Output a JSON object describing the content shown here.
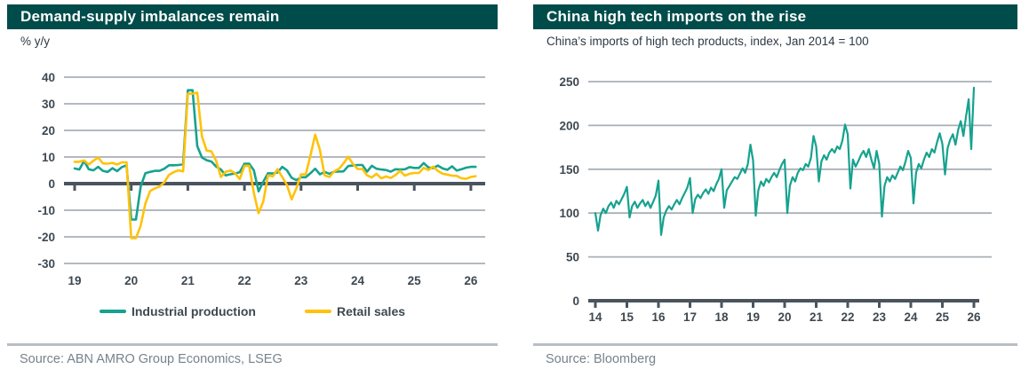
{
  "colors": {
    "header_bg": "#004C4A",
    "teal": "#16A28F",
    "yellow": "#FFC20A",
    "grid": "#A9AFB5",
    "axis": "#4A545E",
    "text_dark": "#2E3943",
    "text_muted": "#78828B",
    "divider": "#B9BEC3"
  },
  "left_panel": {
    "title": "Demand-supply imbalances remain",
    "subtitle": "% y/y",
    "source": "Source: ABN AMRO Group Economics, LSEG"
  },
  "right_panel": {
    "title": "China high tech imports on the rise",
    "subtitle": "China’s imports of high tech products, index, Jan 2014 = 100",
    "source": "Source: Bloomberg"
  },
  "chart_data": [
    {
      "type": "line",
      "title": "Demand-supply imbalances remain",
      "ylabel": "% y/y",
      "ylim": [
        -30,
        40
      ],
      "ytick_step": 10,
      "grid": true,
      "legend_position": "bottom",
      "x_unit": "monthly, Jan 2019 - Feb 2026",
      "x_ticks": [
        "19",
        "20",
        "21",
        "22",
        "23",
        "24",
        "25",
        "26"
      ],
      "series": [
        {
          "name": "Industrial production",
          "color": "#16A28F",
          "values": [
            5.7,
            5.3,
            8.5,
            5.4,
            5.0,
            6.3,
            4.8,
            4.4,
            5.8,
            4.7,
            6.2,
            6.9,
            -13.5,
            -13.5,
            -1.1,
            3.9,
            4.4,
            4.8,
            4.8,
            5.6,
            6.9,
            6.9,
            7.0,
            7.3,
            35.1,
            35.1,
            14.1,
            9.8,
            8.8,
            8.3,
            6.4,
            5.3,
            3.1,
            3.5,
            3.8,
            4.3,
            7.5,
            7.5,
            5.0,
            -2.9,
            0.7,
            3.9,
            3.8,
            4.2,
            6.3,
            5.0,
            2.2,
            1.3,
            2.4,
            2.4,
            3.9,
            5.6,
            3.5,
            4.4,
            3.7,
            4.5,
            4.5,
            4.6,
            6.6,
            6.8,
            7.0,
            7.0,
            4.5,
            6.7,
            5.6,
            5.3,
            5.1,
            4.5,
            5.4,
            5.3,
            5.4,
            6.2,
            5.9,
            5.9,
            7.7,
            6.1,
            5.8,
            6.8,
            5.7,
            5.2,
            6.5,
            4.9,
            5.4,
            6.0,
            6.3,
            6.3
          ]
        },
        {
          "name": "Retail sales",
          "color": "#FFC20A",
          "values": [
            8.2,
            8.2,
            8.7,
            7.2,
            8.6,
            9.8,
            7.6,
            7.5,
            7.8,
            7.2,
            8.0,
            8.0,
            -20.5,
            -20.5,
            -15.8,
            -7.5,
            -2.8,
            -1.8,
            -1.1,
            0.5,
            3.3,
            4.3,
            5.0,
            4.6,
            33.8,
            33.8,
            34.2,
            17.7,
            12.4,
            12.1,
            8.5,
            2.5,
            4.4,
            4.9,
            3.9,
            1.7,
            6.7,
            6.7,
            -3.5,
            -11.1,
            -6.7,
            3.1,
            2.7,
            5.4,
            2.5,
            -0.5,
            -5.9,
            -1.8,
            3.5,
            3.5,
            10.6,
            18.4,
            12.7,
            3.1,
            2.5,
            4.6,
            5.5,
            7.6,
            10.1,
            7.4,
            5.5,
            5.5,
            3.1,
            2.3,
            3.7,
            2.0,
            2.7,
            2.1,
            3.2,
            4.8,
            3.0,
            3.7,
            4.0,
            4.0,
            5.9,
            5.1,
            6.4,
            4.8,
            3.7,
            3.4,
            3.0,
            2.9,
            2.0,
            1.8,
            2.5,
            2.8
          ]
        }
      ]
    },
    {
      "type": "line",
      "title": "China high tech imports on the rise",
      "subtitle": "China’s imports of high tech products, index, Jan 2014 = 100",
      "ylim": [
        0,
        250
      ],
      "ytick_step": 50,
      "grid": true,
      "legend_position": "none",
      "x_unit": "monthly, Jan 2014 - Jan 2026",
      "x_ticks": [
        "14",
        "15",
        "16",
        "17",
        "18",
        "19",
        "20",
        "21",
        "22",
        "23",
        "24",
        "25",
        "26"
      ],
      "series": [
        {
          "name": "China imports of high tech products (index)",
          "color": "#16A28F",
          "values": [
            100,
            80,
            98,
            105,
            100,
            108,
            112,
            106,
            114,
            110,
            116,
            122,
            130,
            95,
            108,
            113,
            106,
            111,
            115,
            108,
            113,
            106,
            113,
            120,
            137,
            75,
            95,
            103,
            108,
            104,
            110,
            115,
            110,
            117,
            123,
            129,
            140,
            100,
            116,
            121,
            117,
            123,
            127,
            122,
            129,
            125,
            133,
            139,
            150,
            106,
            126,
            131,
            136,
            141,
            139,
            145,
            151,
            146,
            156,
            178,
            160,
            97,
            126,
            136,
            131,
            139,
            135,
            141,
            146,
            141,
            149,
            156,
            161,
            100,
            131,
            141,
            136,
            146,
            151,
            149,
            156,
            153,
            163,
            188,
            176,
            136,
            159,
            166,
            161,
            169,
            173,
            169,
            176,
            173,
            183,
            201,
            190,
            128,
            161,
            153,
            159,
            166,
            171,
            164,
            173,
            161,
            151,
            171,
            156,
            96,
            131,
            141,
            136,
            143,
            139,
            146,
            153,
            149,
            159,
            171,
            163,
            111,
            146,
            156,
            151,
            161,
            169,
            164,
            173,
            169,
            181,
            191,
            179,
            144,
            174,
            184,
            190,
            178,
            195,
            205,
            188,
            210,
            230,
            173,
            243
          ]
        }
      ]
    }
  ]
}
